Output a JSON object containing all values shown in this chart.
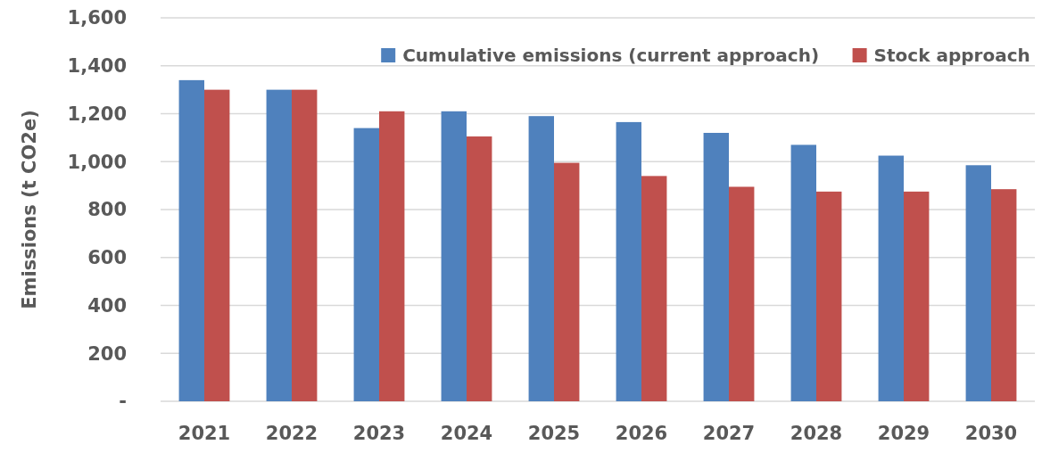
{
  "chart_data": {
    "type": "bar",
    "ylabel": "Emissions (t CO2e)",
    "categories": [
      "2021",
      "2022",
      "2023",
      "2024",
      "2025",
      "2026",
      "2027",
      "2028",
      "2029",
      "2030"
    ],
    "series": [
      {
        "name": "Cumulative emissions (current approach)",
        "color": "#4f81bd",
        "values": [
          1340,
          1300,
          1140,
          1210,
          1190,
          1165,
          1120,
          1070,
          1025,
          985
        ]
      },
      {
        "name": "Stock approach",
        "color": "#c0504d",
        "values": [
          1300,
          1300,
          1210,
          1105,
          995,
          940,
          895,
          875,
          875,
          885
        ]
      }
    ],
    "ylim": [
      0,
      1600
    ],
    "yticks": [
      {
        "value": 0,
        "label": "-"
      },
      {
        "value": 200,
        "label": "200"
      },
      {
        "value": 400,
        "label": "400"
      },
      {
        "value": 600,
        "label": "600"
      },
      {
        "value": 800,
        "label": "800"
      },
      {
        "value": 1000,
        "label": "1,000"
      },
      {
        "value": 1200,
        "label": "1,200"
      },
      {
        "value": 1400,
        "label": "1,400"
      },
      {
        "value": 1600,
        "label": "1,600"
      }
    ],
    "grid": "y",
    "legend": "top right"
  }
}
